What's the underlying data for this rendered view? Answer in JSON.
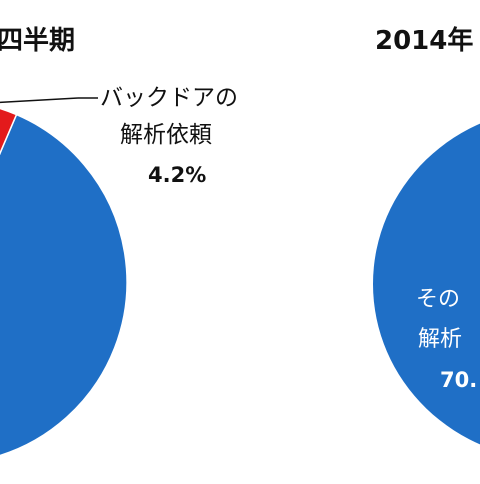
{
  "colors": {
    "background": "#ffffff",
    "blue": "#1f6fc6",
    "red": "#e31a1c",
    "text": "#111111",
    "slice_text": "#ffffff"
  },
  "chart_data": [
    {
      "type": "pie",
      "title": "四半期",
      "slices": [
        {
          "label_lines": [
            "バックドアの",
            "解析依頼"
          ],
          "percent_label": "4.2%",
          "value": 4.2,
          "color": "#e31a1c"
        },
        {
          "label_lines": [],
          "percent_label": "",
          "value": 95.8,
          "color": "#1f6fc6"
        }
      ]
    },
    {
      "type": "pie",
      "title": "2014年",
      "slices": [
        {
          "label_lines": [
            "その",
            "解析"
          ],
          "percent_label": "70.",
          "value": 70,
          "color": "#1f6fc6"
        }
      ]
    }
  ]
}
